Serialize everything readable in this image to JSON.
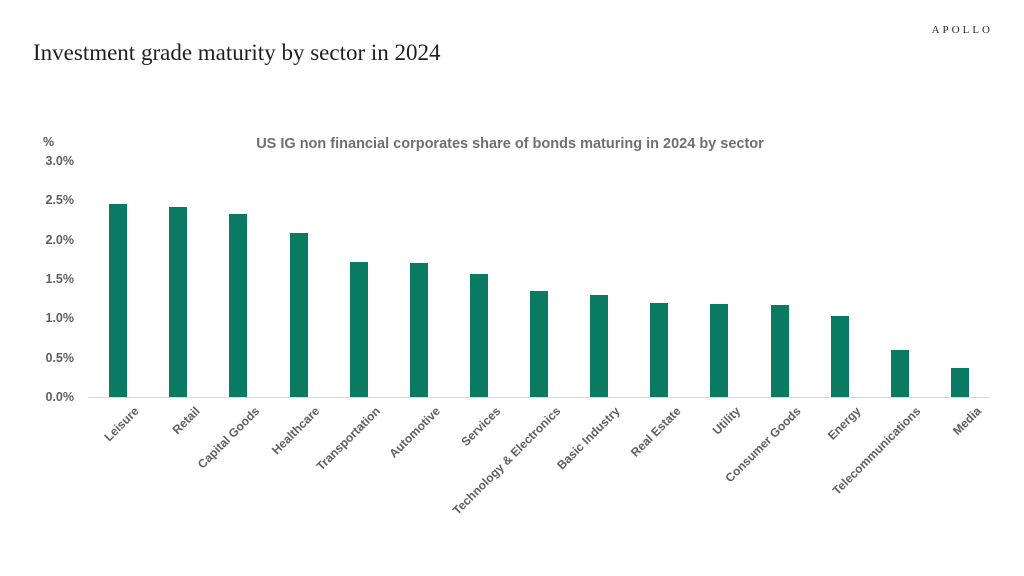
{
  "header": {
    "brand": "APOLLO",
    "title": "Investment grade maturity by sector in 2024"
  },
  "chart_data": {
    "type": "bar",
    "title": "US IG non financial corporates share of bonds maturing in 2024 by sector",
    "unit_label": "%",
    "categories": [
      "Leisure",
      "Retail",
      "Capital Goods",
      "Healthcare",
      "Transportation",
      "Automotive",
      "Services",
      "Technology & Electronics",
      "Basic Industry",
      "Real Estate",
      "Utility",
      "Consumer Goods",
      "Energy",
      "Telecommunications",
      "Media"
    ],
    "values": [
      2.45,
      2.42,
      2.33,
      2.09,
      1.72,
      1.7,
      1.57,
      1.35,
      1.3,
      1.2,
      1.18,
      1.17,
      1.03,
      0.6,
      0.37
    ],
    "xlabel": "",
    "ylabel": "%",
    "ylim": [
      0,
      3.0
    ],
    "ytick_step": 0.5,
    "ytick_labels": [
      "0.0%",
      "0.5%",
      "1.0%",
      "1.5%",
      "2.0%",
      "2.5%",
      "3.0%"
    ],
    "grid": false,
    "legend": false,
    "bar_color": "#0a7a62",
    "axis_line_color": "#d9d9d9",
    "tick_text_color": "#5f5f5f",
    "title_color": "#6f6f6f"
  }
}
